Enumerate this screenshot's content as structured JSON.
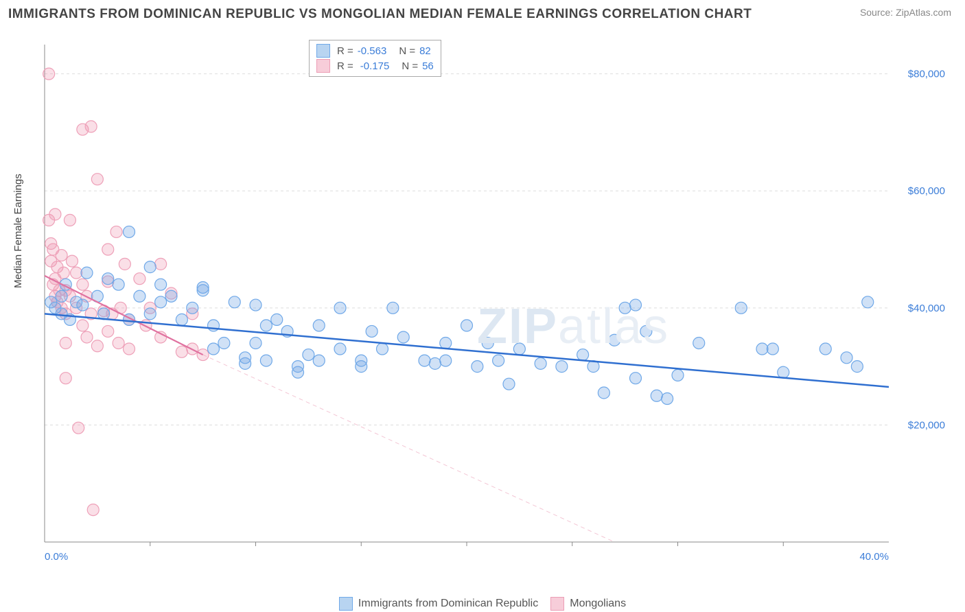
{
  "title": "IMMIGRANTS FROM DOMINICAN REPUBLIC VS MONGOLIAN MEDIAN FEMALE EARNINGS CORRELATION CHART",
  "source": "Source: ZipAtlas.com",
  "ylabel": "Median Female Earnings",
  "watermark_a": "ZIP",
  "watermark_b": "atlas",
  "chart": {
    "type": "scatter",
    "background_color": "#ffffff",
    "grid_color": "#dddddd",
    "axis_color": "#888888",
    "xlim": [
      0,
      40
    ],
    "ylim": [
      0,
      85000
    ],
    "x_ticks": [
      0,
      40
    ],
    "x_tick_labels": [
      "0.0%",
      "40.0%"
    ],
    "x_minor_ticks": [
      5,
      10,
      15,
      20,
      25,
      30,
      35
    ],
    "y_ticks": [
      20000,
      40000,
      60000,
      80000
    ],
    "y_tick_labels": [
      "$20,000",
      "$40,000",
      "$60,000",
      "$80,000"
    ],
    "point_radius": 8.5,
    "point_stroke_width": 1.2,
    "series": [
      {
        "name": "Immigrants from Dominican Republic",
        "color_fill": "rgba(120,170,230,0.35)",
        "color_stroke": "#6fa8e8",
        "swatch_fill": "#b8d4f1",
        "swatch_stroke": "#6fa8e8",
        "R": "-0.563",
        "N": "82",
        "trend": {
          "x1": 0,
          "y1": 39000,
          "x2": 40,
          "y2": 26500,
          "color": "#2f6fd0",
          "width": 2.5,
          "dash": ""
        },
        "points": [
          [
            0.3,
            41000
          ],
          [
            0.5,
            40000
          ],
          [
            0.8,
            42000
          ],
          [
            0.8,
            39000
          ],
          [
            1.0,
            44000
          ],
          [
            1.2,
            38000
          ],
          [
            1.5,
            41000
          ],
          [
            1.8,
            40500
          ],
          [
            2.0,
            46000
          ],
          [
            2.5,
            42000
          ],
          [
            2.8,
            39000
          ],
          [
            3.0,
            45000
          ],
          [
            3.5,
            44000
          ],
          [
            4.0,
            53000
          ],
          [
            4.0,
            38000
          ],
          [
            4.5,
            42000
          ],
          [
            5.0,
            39000
          ],
          [
            5.0,
            47000
          ],
          [
            5.5,
            41000
          ],
          [
            5.5,
            44000
          ],
          [
            6.0,
            42000
          ],
          [
            6.5,
            38000
          ],
          [
            7.0,
            40000
          ],
          [
            7.5,
            43000
          ],
          [
            7.5,
            43500
          ],
          [
            8.0,
            33000
          ],
          [
            8.0,
            37000
          ],
          [
            8.5,
            34000
          ],
          [
            9.0,
            41000
          ],
          [
            9.5,
            30500
          ],
          [
            9.5,
            31500
          ],
          [
            10.0,
            34000
          ],
          [
            10.0,
            40500
          ],
          [
            10.5,
            37000
          ],
          [
            10.5,
            31000
          ],
          [
            11.0,
            38000
          ],
          [
            11.5,
            36000
          ],
          [
            12.0,
            29000
          ],
          [
            12.0,
            30000
          ],
          [
            12.5,
            32000
          ],
          [
            13.0,
            37000
          ],
          [
            13.0,
            31000
          ],
          [
            14.0,
            40000
          ],
          [
            14.0,
            33000
          ],
          [
            15.0,
            30000
          ],
          [
            15.0,
            31000
          ],
          [
            15.5,
            36000
          ],
          [
            16.0,
            33000
          ],
          [
            16.5,
            40000
          ],
          [
            17.0,
            35000
          ],
          [
            18.0,
            31000
          ],
          [
            18.5,
            30500
          ],
          [
            19.0,
            31000
          ],
          [
            19.0,
            34000
          ],
          [
            20.0,
            37000
          ],
          [
            20.5,
            30000
          ],
          [
            21.0,
            34000
          ],
          [
            21.5,
            31000
          ],
          [
            22.0,
            27000
          ],
          [
            22.5,
            33000
          ],
          [
            23.5,
            30500
          ],
          [
            24.5,
            30000
          ],
          [
            25.5,
            32000
          ],
          [
            26.0,
            30000
          ],
          [
            26.5,
            25500
          ],
          [
            27.0,
            34500
          ],
          [
            27.5,
            40000
          ],
          [
            28.0,
            40500
          ],
          [
            28.0,
            28000
          ],
          [
            28.5,
            36000
          ],
          [
            29.0,
            25000
          ],
          [
            29.5,
            24500
          ],
          [
            30.0,
            28500
          ],
          [
            31.0,
            34000
          ],
          [
            33.0,
            40000
          ],
          [
            34.0,
            33000
          ],
          [
            34.5,
            33000
          ],
          [
            35.0,
            29000
          ],
          [
            37.0,
            33000
          ],
          [
            38.0,
            31500
          ],
          [
            38.5,
            30000
          ],
          [
            39.0,
            41000
          ]
        ]
      },
      {
        "name": "Mongolians",
        "color_fill": "rgba(240,150,175,0.30)",
        "color_stroke": "#eea0b8",
        "swatch_fill": "#f7cdd9",
        "swatch_stroke": "#ec9db5",
        "R": "-0.175",
        "N": "56",
        "trend": {
          "x1": 0,
          "y1": 45500,
          "x2": 7.5,
          "y2": 32000,
          "color": "#e072a0",
          "width": 2.2,
          "dash": ""
        },
        "trend_ext": {
          "x1": 7.5,
          "y1": 32000,
          "x2": 27,
          "y2": 0,
          "color": "#f3c6d4",
          "width": 1,
          "dash": "6,5"
        },
        "points": [
          [
            0.2,
            80000
          ],
          [
            0.2,
            55000
          ],
          [
            0.3,
            48000
          ],
          [
            0.3,
            51000
          ],
          [
            0.4,
            44000
          ],
          [
            0.4,
            50000
          ],
          [
            0.5,
            45000
          ],
          [
            0.5,
            56000
          ],
          [
            0.5,
            42000
          ],
          [
            0.6,
            47000
          ],
          [
            0.6,
            41000
          ],
          [
            0.7,
            43000
          ],
          [
            0.8,
            49000
          ],
          [
            0.8,
            40000
          ],
          [
            0.9,
            46000
          ],
          [
            1.0,
            39000
          ],
          [
            1.0,
            43000
          ],
          [
            1.0,
            34000
          ],
          [
            1.0,
            28000
          ],
          [
            1.2,
            55000
          ],
          [
            1.2,
            42000
          ],
          [
            1.3,
            48000
          ],
          [
            1.5,
            46000
          ],
          [
            1.5,
            40000
          ],
          [
            1.6,
            19500
          ],
          [
            1.8,
            70500
          ],
          [
            1.8,
            37000
          ],
          [
            1.8,
            44000
          ],
          [
            2.0,
            42000
          ],
          [
            2.0,
            35000
          ],
          [
            2.2,
            71000
          ],
          [
            2.2,
            39000
          ],
          [
            2.3,
            5500
          ],
          [
            2.5,
            62000
          ],
          [
            2.5,
            33500
          ],
          [
            2.8,
            39500
          ],
          [
            3.0,
            50000
          ],
          [
            3.0,
            36000
          ],
          [
            3.0,
            44500
          ],
          [
            3.2,
            39000
          ],
          [
            3.4,
            53000
          ],
          [
            3.5,
            34000
          ],
          [
            3.6,
            40000
          ],
          [
            3.8,
            47500
          ],
          [
            4.0,
            38000
          ],
          [
            4.0,
            33000
          ],
          [
            4.5,
            45000
          ],
          [
            4.8,
            37000
          ],
          [
            5.0,
            40000
          ],
          [
            5.5,
            47500
          ],
          [
            5.5,
            35000
          ],
          [
            6.0,
            42500
          ],
          [
            6.5,
            32500
          ],
          [
            7.0,
            39000
          ],
          [
            7.0,
            33000
          ],
          [
            7.5,
            32000
          ]
        ]
      }
    ],
    "legend_bottom": [
      {
        "label": "Immigrants from Dominican Republic",
        "series": 0
      },
      {
        "label": "Mongolians",
        "series": 1
      }
    ]
  }
}
